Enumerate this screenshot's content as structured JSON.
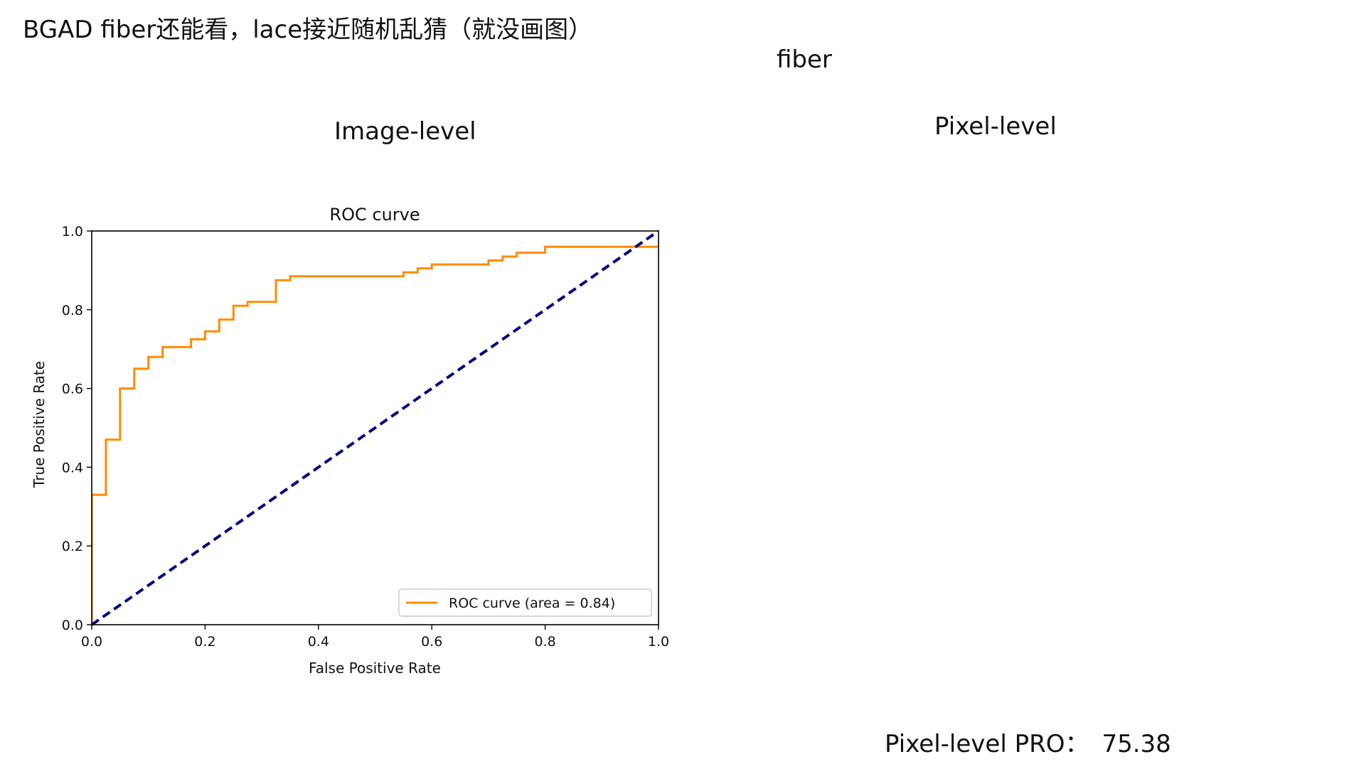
{
  "header": {
    "title": "BGAD fiber还能看，lace接近随机乱猜（就没画图）",
    "subtitle": "fiber"
  },
  "sections": {
    "image_level": "Image-level",
    "pixel_level": "Pixel-level"
  },
  "pixel_pro": {
    "label": "Pixel-level PRO：",
    "value": "75.38"
  },
  "chart_data": {
    "type": "line",
    "title": "ROC curve",
    "xlabel": "False Positive Rate",
    "ylabel": "True Positive Rate",
    "xlim": [
      0,
      1
    ],
    "ylim": [
      0,
      1
    ],
    "xticks": [
      "0.0",
      "0.2",
      "0.4",
      "0.6",
      "0.8",
      "1.0"
    ],
    "yticks": [
      "0.0",
      "0.2",
      "0.4",
      "0.6",
      "0.8",
      "1.0"
    ],
    "grid": false,
    "legend_position": "lower-right",
    "series": [
      {
        "name": "ROC curve (area = 0.84)",
        "color": "#ff8c00",
        "style": "solid",
        "x": [
          0,
          0,
          0.025,
          0.025,
          0.05,
          0.05,
          0.075,
          0.075,
          0.1,
          0.1,
          0.125,
          0.125,
          0.175,
          0.175,
          0.2,
          0.2,
          0.225,
          0.225,
          0.25,
          0.25,
          0.275,
          0.275,
          0.325,
          0.325,
          0.35,
          0.35,
          0.55,
          0.55,
          0.575,
          0.575,
          0.6,
          0.6,
          0.7,
          0.7,
          0.725,
          0.725,
          0.75,
          0.75,
          0.8,
          0.8,
          1.0
        ],
        "y": [
          0,
          0.33,
          0.33,
          0.47,
          0.47,
          0.6,
          0.6,
          0.65,
          0.65,
          0.68,
          0.68,
          0.705,
          0.705,
          0.725,
          0.725,
          0.745,
          0.745,
          0.775,
          0.775,
          0.81,
          0.81,
          0.82,
          0.82,
          0.875,
          0.875,
          0.885,
          0.885,
          0.895,
          0.895,
          0.905,
          0.905,
          0.915,
          0.915,
          0.925,
          0.925,
          0.935,
          0.935,
          0.945,
          0.945,
          0.96,
          0.96
        ]
      },
      {
        "name": "",
        "color": "#000080",
        "style": "dashed",
        "x": [
          0,
          1
        ],
        "y": [
          0,
          1
        ]
      }
    ]
  }
}
